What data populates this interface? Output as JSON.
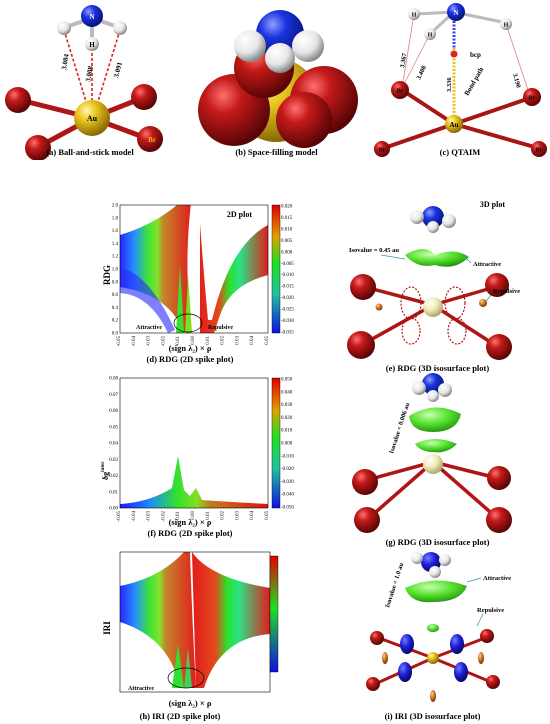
{
  "panel_a": {
    "caption": "(a) Ball-and-stick model",
    "atoms": {
      "n": "N",
      "h": "H",
      "au": "Au",
      "br": "Br"
    },
    "distances": [
      "3.084",
      "3.008",
      "3.091"
    ],
    "colors": {
      "n": "#2233dd",
      "h": "#e8e8e8",
      "au": "#e6c21a",
      "br": "#b01515",
      "contact": "#dd2222"
    }
  },
  "panel_b": {
    "caption": "(b) Space-filling model"
  },
  "panel_c": {
    "caption": "(c) QTAIM",
    "atoms": {
      "n": "N",
      "h": "H",
      "au": "Au",
      "br": "Br"
    },
    "distances": [
      "3.367",
      "3.408",
      "3.336",
      "3.190"
    ],
    "bcp_label": "bcp",
    "path_label": "Bond path"
  },
  "panel_d": {
    "caption": "(d) RDG (2D spike plot)",
    "plot_label": "2D plot",
    "ylabel": "RDG",
    "xlabel": "(sign λ₂) × ρ",
    "attractive": "Attractive",
    "repulsive": "Repulsive",
    "yticks": [
      "0.0",
      "0.2",
      "0.4",
      "0.6",
      "0.8",
      "1.0",
      "1.2",
      "1.4",
      "1.6",
      "1.8",
      "2.0"
    ],
    "xticks": [
      "-0.05",
      "-0.04",
      "-0.03",
      "-0.02",
      "-0.01",
      "0.00",
      "0.01",
      "0.02",
      "0.03",
      "0.04",
      "0.05"
    ],
    "cbticks": [
      "0.020",
      "0.015",
      "0.010",
      "0.005",
      "0.000",
      "-0.005",
      "-0.010",
      "-0.015",
      "-0.020",
      "-0.025",
      "-0.030",
      "-0.035"
    ]
  },
  "panel_e": {
    "caption": "(e) RDG (3D isosurface plot)",
    "plot_label": "3D plot",
    "isovalue": "Isovalue = 0.45 au",
    "attractive": "Attractive",
    "repulsive": "Repulsive"
  },
  "panel_f": {
    "caption": "(f) RDG (2D spike plot)",
    "ylabel": "δg",
    "ylabel_sup": "inter",
    "xlabel": "(sign λ₂) × ρ",
    "yticks": [
      "0.00",
      "0.01",
      "0.02",
      "0.03",
      "0.04",
      "0.05",
      "0.06",
      "0.07",
      "0.08"
    ],
    "xticks": [
      "-0.05",
      "-0.04",
      "-0.03",
      "-0.02",
      "-0.01",
      "0.00",
      "0.01",
      "0.02",
      "0.03",
      "0.04",
      "0.05"
    ],
    "cbticks": [
      "0.050",
      "0.040",
      "0.030",
      "0.020",
      "0.010",
      "0.000",
      "-0.010",
      "-0.020",
      "-0.030",
      "-0.040",
      "-0.050"
    ]
  },
  "panel_g": {
    "caption": "(g) RDG (3D isosurface plot)",
    "isovalue": "Isovalue = 0.006 au"
  },
  "panel_h": {
    "caption": "(h)  IRI (2D spike plot)",
    "ylabel": "IRI",
    "xlabel": "(sign λ₂) × ρ",
    "attractive": "Attractive"
  },
  "panel_i": {
    "caption": "(i)  IRI (3D isosurface plot)",
    "isovalue": "Isovalue = 1.0 au",
    "attractive": "Attractive",
    "repulsive": "Repulsive"
  }
}
